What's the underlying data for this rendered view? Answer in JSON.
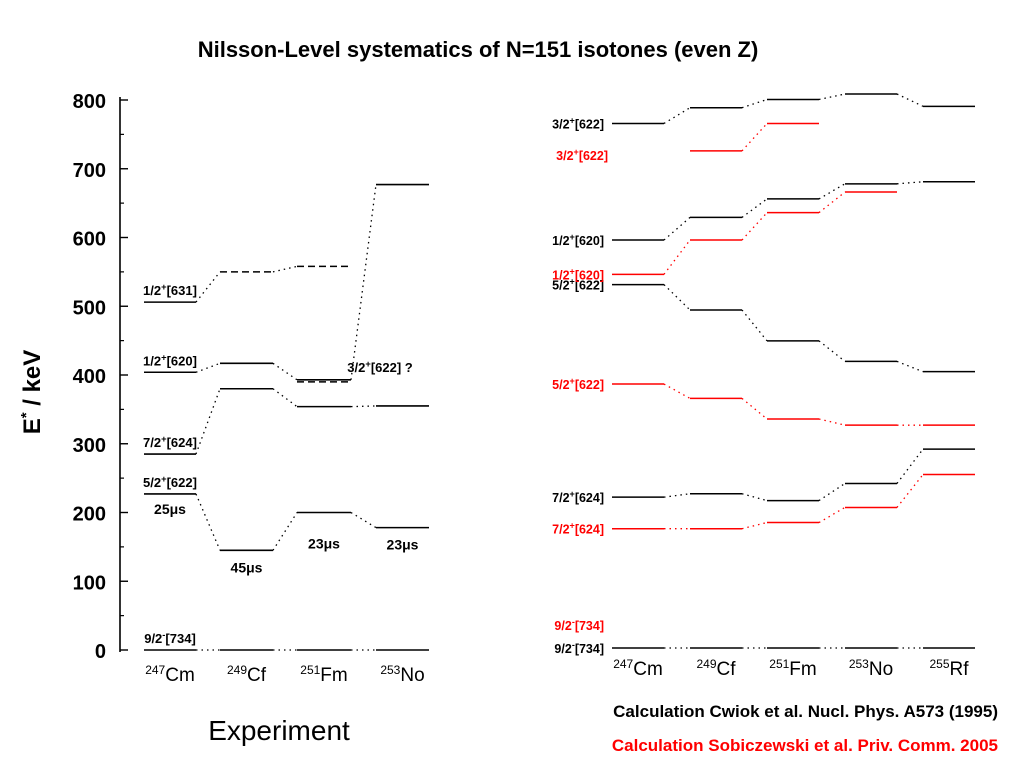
{
  "title": "Nilsson-Level systematics of N=151 isotones (even Z)",
  "colors": {
    "black": "#000000",
    "red": "#ff0000",
    "background": "#ffffff"
  },
  "chart_data": [
    {
      "type": "level-scheme",
      "panel": "experiment",
      "caption": "Experiment",
      "ylabel": {
        "base": "E",
        "sup": "*",
        "rest": " / keV"
      },
      "ylim": [
        0,
        800
      ],
      "yticks": [
        0,
        100,
        200,
        300,
        400,
        500,
        600,
        700,
        800
      ],
      "nuclei": [
        {
          "mass": "247",
          "symbol": "Cm"
        },
        {
          "mass": "249",
          "symbol": "Cf"
        },
        {
          "mass": "251",
          "symbol": "Fm"
        },
        {
          "mass": "253",
          "symbol": "No"
        }
      ],
      "levels": [
        {
          "label": {
            "k": "9/2",
            "p": "-",
            "n": "[734]"
          },
          "style": "solid",
          "energies": [
            0,
            0,
            0,
            0
          ]
        },
        {
          "label": {
            "k": "5/2",
            "p": "+",
            "n": "[622]"
          },
          "style": "solid",
          "energies": [
            227,
            145,
            200,
            178
          ],
          "isomers": [
            "25μs",
            "45μs",
            "23μs",
            "23μs"
          ]
        },
        {
          "label": {
            "k": "7/2",
            "p": "+",
            "n": "[624]"
          },
          "style": "solid",
          "energies": [
            285,
            380,
            354,
            355
          ]
        },
        {
          "label": {
            "k": "1/2",
            "p": "+",
            "n": "[620]"
          },
          "style": "solid",
          "energies": [
            404,
            417,
            393,
            677
          ]
        },
        {
          "label": {
            "k": "1/2",
            "p": "+",
            "n": "[631]"
          },
          "style": "dashed",
          "energies": [
            506,
            550,
            558,
            null
          ]
        },
        {
          "label": {
            "k": "3/2",
            "p": "+",
            "n": "[622] ?"
          },
          "style": "dashed",
          "energies": [
            null,
            null,
            390,
            null
          ]
        }
      ]
    },
    {
      "type": "level-scheme",
      "panel": "calculation",
      "nuclei": [
        {
          "mass": "247",
          "symbol": "Cm"
        },
        {
          "mass": "249",
          "symbol": "Cf"
        },
        {
          "mass": "251",
          "symbol": "Fm"
        },
        {
          "mass": "253",
          "symbol": "No"
        },
        {
          "mass": "255",
          "symbol": "Rf"
        }
      ],
      "series": [
        {
          "name": "Calculation Cwiok et al. Nucl. Phys. A573 (1995)",
          "color": "#000000",
          "levels": [
            {
              "label": {
                "k": "9/2",
                "p": "-",
                "n": "[734]"
              },
              "energies": [
                0,
                0,
                0,
                0,
                0
              ]
            },
            {
              "label": {
                "k": "7/2",
                "p": "+",
                "n": "[624]"
              },
              "energies": [
                220,
                225,
                215,
                240,
                290
              ]
            },
            {
              "label": {
                "k": "5/2",
                "p": "+",
                "n": "[622]"
              },
              "energies": [
                530,
                493,
                448,
                418,
                403
              ]
            },
            {
              "label": {
                "k": "1/2",
                "p": "+",
                "n": "[620]"
              },
              "energies": [
                595,
                628,
                655,
                677,
                680
              ]
            },
            {
              "label": {
                "k": "3/2",
                "p": "+",
                "n": "[622]"
              },
              "energies": [
                765,
                788,
                800,
                808,
                790
              ]
            }
          ]
        },
        {
          "name": "Calculation Sobiczewski et al. Priv. Comm. 2005",
          "color": "#ff0000",
          "levels": [
            {
              "label": {
                "k": "9/2",
                "p": "-",
                "n": "[734]"
              },
              "energies": [
                null,
                null,
                null,
                null,
                null
              ]
            },
            {
              "label": {
                "k": "7/2",
                "p": "+",
                "n": "[624]"
              },
              "energies": [
                174,
                174,
                183,
                205,
                253
              ]
            },
            {
              "label": {
                "k": "5/2",
                "p": "+",
                "n": "[622]"
              },
              "energies": [
                385,
                364,
                334,
                325,
                325
              ]
            },
            {
              "label": {
                "k": "1/2",
                "p": "+",
                "n": "[620]"
              },
              "energies": [
                545,
                595,
                635,
                665,
                null
              ]
            },
            {
              "label": {
                "k": "3/2",
                "p": "+",
                "n": "[622]"
              },
              "energies": [
                null,
                725,
                765,
                null,
                null
              ]
            }
          ]
        }
      ]
    }
  ]
}
